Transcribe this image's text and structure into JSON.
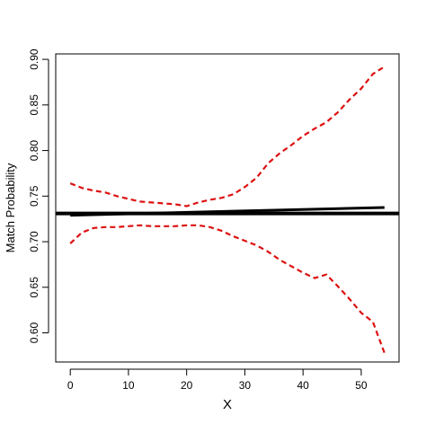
{
  "chart_data": {
    "type": "line",
    "xlabel": "X",
    "ylabel": "Match Probability",
    "xlim": [
      -2.5,
      56.5
    ],
    "ylim": [
      0.568,
      0.906
    ],
    "xticks": [
      0,
      10,
      20,
      30,
      40,
      50
    ],
    "yticks": [
      0.6,
      0.65,
      0.7,
      0.75,
      0.8,
      0.85,
      0.9
    ],
    "grid": false,
    "legend": "none",
    "colors": {
      "fit": "#000000",
      "band": "#dd1111",
      "axis": "#000000"
    },
    "series": [
      {
        "style": "solid",
        "x": [
          0,
          54
        ],
        "y": [
          0.729,
          0.7375
        ]
      },
      {
        "style": "dashed",
        "x": [
          0,
          2,
          4,
          6,
          8,
          10,
          12,
          14,
          16,
          18,
          20,
          22,
          24,
          26,
          28,
          30,
          32,
          34,
          36,
          38,
          40,
          42,
          44,
          46,
          48,
          50,
          52,
          54
        ],
        "y": [
          0.764,
          0.759,
          0.756,
          0.754,
          0.75,
          0.747,
          0.744,
          0.743,
          0.742,
          0.741,
          0.739,
          0.743,
          0.746,
          0.748,
          0.752,
          0.76,
          0.77,
          0.786,
          0.797,
          0.806,
          0.816,
          0.824,
          0.831,
          0.842,
          0.856,
          0.868,
          0.884,
          0.892
        ]
      },
      {
        "style": "dashed",
        "x": [
          0,
          2,
          4,
          6,
          8,
          10,
          12,
          14,
          16,
          18,
          20,
          22,
          24,
          26,
          28,
          30,
          32,
          34,
          36,
          38,
          40,
          42,
          44,
          46,
          48,
          50,
          52,
          54
        ],
        "y": [
          0.698,
          0.71,
          0.715,
          0.716,
          0.716,
          0.717,
          0.718,
          0.717,
          0.717,
          0.717,
          0.718,
          0.718,
          0.716,
          0.712,
          0.706,
          0.701,
          0.696,
          0.689,
          0.68,
          0.673,
          0.666,
          0.66,
          0.664,
          0.651,
          0.637,
          0.622,
          0.612,
          0.578
        ]
      },
      {
        "style": "solid-horizontal",
        "y": 0.731
      }
    ]
  }
}
